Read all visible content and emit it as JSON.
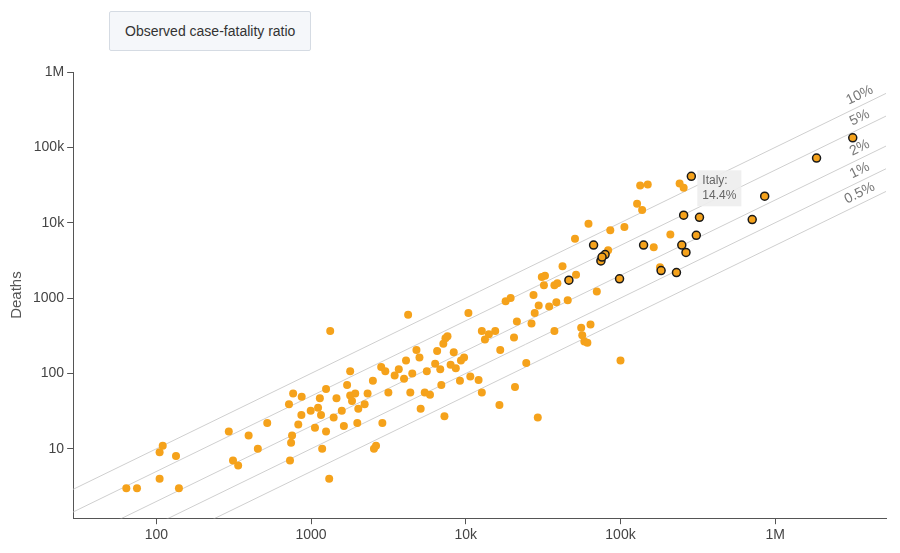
{
  "chart_data": {
    "type": "scatter",
    "title": "Observed case-fatality ratio",
    "y_label": "Deaths",
    "log": true,
    "grid": false,
    "xlim": [
      29,
      5200000
    ],
    "ylim": [
      1.2,
      1000000
    ],
    "xticks": [
      100,
      1000,
      {
        "value": 10000,
        "label": "10k"
      },
      {
        "value": 100000,
        "label": "100k"
      },
      {
        "value": 1000000,
        "label": "1M"
      }
    ],
    "yticks": [
      10,
      100,
      1000,
      {
        "value": 10000,
        "label": "10k"
      },
      {
        "value": 100000,
        "label": "100k"
      },
      {
        "value": 1000000,
        "label": "1M"
      }
    ],
    "series": [
      {
        "color": "#f5a21b",
        "marker": "circle",
        "x": [
          64,
          75,
          105,
          110,
          105,
          134,
          140,
          294,
          313,
          338,
          395,
          453,
          521,
          731,
          743,
          754,
          827,
          866,
          766,
          870,
          720,
          995,
          1060,
          1160,
          1110,
          1140,
          1180,
          1250,
          1400,
          1250,
          1460,
          1330,
          1580,
          1630,
          1790,
          1930,
          1840,
          1710,
          1790,
          1990,
          2020,
          2220,
          2320,
          2510,
          2550,
          2630,
          2890,
          2840,
          3020,
          3160,
          3470,
          3690,
          3990,
          4110,
          4240,
          4380,
          4510,
          4800,
          5020,
          5430,
          5110,
          5600,
          5870,
          6340,
          6530,
          6840,
          6950,
          7160,
          7390,
          7620,
          7980,
          8360,
          8620,
          9170,
          9310,
          9750,
          10400,
          10700,
          7280,
          12100,
          12700,
          12700,
          13300,
          14100,
          15500,
          16700,
          18100,
          19500,
          16500,
          20500,
          20800,
          21400,
          24600,
          26600,
          27400,
          27900,
          29600,
          31000,
          32000,
          32500,
          34600,
          37400,
          37400,
          38500,
          39100,
          42200,
          45600,
          50800,
          51600,
          55700,
          56600,
          58400,
          61100,
          64000,
          62100,
          70300,
          85900,
          83200,
          100000,
          106000,
          134000,
          128000,
          138000,
          150000,
          164000,
          180000,
          210000,
          29200,
          1310,
          241000,
          256000
        ],
        "values": [
          3,
          3,
          9,
          11,
          4,
          8,
          3,
          17,
          7,
          6,
          15,
          10,
          22,
          7,
          12,
          15,
          21,
          28,
          54,
          49,
          39,
          32,
          19,
          28,
          35,
          47,
          10,
          17,
          26,
          62,
          47,
          365,
          32,
          20,
          51,
          54,
          43,
          70,
          107,
          22,
          34,
          39,
          54,
          80,
          10,
          11,
          22,
          122,
          107,
          56,
          94,
          114,
          85,
          148,
          600,
          56,
          100,
          204,
          163,
          56,
          34,
          107,
          52,
          134,
          198,
          114,
          70,
          248,
          292,
          311,
          130,
          191,
          117,
          80,
          148,
          163,
          635,
          91,
          27,
          82,
          56,
          366,
          282,
          332,
          366,
          204,
          908,
          1000,
          38,
          301,
          66,
          490,
          138,
          459,
          1100,
          635,
          796,
          1910,
          1480,
          1980,
          771,
          1480,
          366,
          879,
          1570,
          2650,
          937,
          6150,
          2040,
          404,
          321,
          265,
          256,
          445,
          9680,
          1220,
          7960,
          4300,
          148,
          8790,
          31100,
          17900,
          14800,
          32100,
          4740,
          2560,
          7000,
          26,
          4,
          33200,
          29200
        ]
      },
      {
        "color": "#f5a21b",
        "marker": "circle-outlined",
        "x": [
          287000,
          3170000,
          1850000,
          855000,
          710000,
          256000,
          324000,
          309000,
          249000,
          265000,
          141000,
          67000,
          79500,
          74700,
          76000,
          46400,
          98600,
          183000,
          230000
        ],
        "values": [
          41300,
          134000,
          72000,
          22500,
          11000,
          12600,
          11800,
          6800,
          5060,
          4030,
          5060,
          5060,
          3780,
          3110,
          3500,
          1730,
          1800,
          2320,
          2180
        ]
      }
    ],
    "reference_lines": [
      {
        "value": 10,
        "label": "10%"
      },
      {
        "value": 5,
        "label": "5%"
      },
      {
        "value": 2,
        "label": "2%"
      },
      {
        "value": 1,
        "label": "1%"
      },
      {
        "value": 0.5,
        "label": "0.5%"
      }
    ],
    "annotations": [
      {
        "lines": [
          "Italy:",
          "14.4%"
        ],
        "x": 287000,
        "y": 41300
      }
    ]
  }
}
